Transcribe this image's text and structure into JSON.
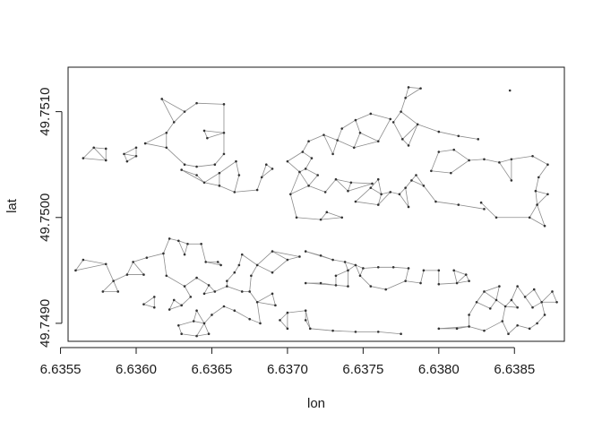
{
  "chart_data": {
    "type": "scatter",
    "title": "",
    "xlabel": "lon",
    "ylabel": "lat",
    "xlim": [
      6.63555,
      6.63883
    ],
    "ylim": [
      49.74883,
      49.75142
    ],
    "x_ticks": [
      "6.6355",
      "6.6360",
      "6.6365",
      "6.6370",
      "6.6375",
      "6.6380",
      "6.6385"
    ],
    "y_ticks": [
      "49.7490",
      "49.7500",
      "49.7510"
    ],
    "grid": false,
    "legend": "none",
    "point_color": "#333333",
    "line_color": "#8c8c8c",
    "series": [
      {
        "values": [
          [
            6.63617,
            49.75112
          ],
          [
            6.6364,
            49.75108
          ],
          [
            6.63658,
            49.75107
          ],
          [
            6.63632,
            49.751
          ],
          [
            6.63625,
            49.7509
          ],
          [
            6.6362,
            49.7508
          ],
          [
            6.63606,
            49.7507
          ],
          [
            6.6362,
            49.75066
          ],
          [
            6.63632,
            49.7505
          ],
          [
            6.6364,
            49.75048
          ],
          [
            6.63652,
            49.7505
          ],
          [
            6.63658,
            49.7506
          ],
          [
            6.63645,
            49.75082
          ],
          [
            6.63658,
            49.7508
          ],
          [
            6.63647,
            49.75075
          ]
        ]
      },
      {
        "values": [
          [
            6.63565,
            49.75056
          ],
          [
            6.6358,
            49.75054
          ],
          [
            6.63572,
            49.75066
          ],
          [
            6.6358,
            49.75065
          ],
          [
            6.63592,
            49.7506
          ],
          [
            6.636,
            49.75058
          ],
          [
            6.636,
            49.75066
          ],
          [
            6.63594,
            49.75053
          ]
        ]
      },
      {
        "values": [
          [
            6.6363,
            49.75045
          ],
          [
            6.6364,
            49.7504
          ],
          [
            6.63645,
            49.75033
          ],
          [
            6.63655,
            49.7503
          ],
          [
            6.63665,
            49.75024
          ],
          [
            6.6368,
            49.75026
          ],
          [
            6.63686,
            49.7505
          ],
          [
            6.63666,
            49.75053
          ],
          [
            6.63655,
            49.75042
          ],
          [
            6.63668,
            49.7504
          ],
          [
            6.63683,
            49.75038
          ],
          [
            6.6369,
            49.75046
          ]
        ]
      },
      {
        "values": [
          [
            6.637,
            49.75053
          ],
          [
            6.63712,
            49.75046
          ],
          [
            6.6372,
            49.7504
          ],
          [
            6.63732,
            49.75036
          ],
          [
            6.63742,
            49.75033
          ],
          [
            6.63714,
            49.7503
          ],
          [
            6.63725,
            49.75024
          ],
          [
            6.6374,
            49.75025
          ],
          [
            6.63756,
            49.75032
          ],
          [
            6.63716,
            49.75056
          ],
          [
            6.6373,
            49.7506
          ],
          [
            6.63744,
            49.75066
          ],
          [
            6.6376,
            49.75072
          ],
          [
            6.63724,
            49.75078
          ],
          [
            6.63736,
            49.75084
          ],
          [
            6.63745,
            49.75092
          ],
          [
            6.63755,
            49.75098
          ],
          [
            6.63768,
            49.75093
          ],
          [
            6.6371,
            49.75062
          ],
          [
            6.63714,
            49.75072
          ],
          [
            6.63733,
            49.75073
          ],
          [
            6.63748,
            49.7508
          ],
          [
            6.63708,
            49.75043
          ],
          [
            6.63702,
            49.75022
          ],
          [
            6.63726,
            49.75005
          ],
          [
            6.63736,
            49.75
          ],
          [
            6.63706,
            49.75
          ],
          [
            6.63722,
            49.74998
          ]
        ]
      },
      {
        "values": [
          [
            6.6378,
            49.75123
          ],
          [
            6.63788,
            49.75122
          ],
          [
            6.63778,
            49.75113
          ],
          [
            6.63775,
            49.751
          ],
          [
            6.6377,
            49.7509
          ],
          [
            6.63776,
            49.75074
          ],
          [
            6.6378,
            49.75068
          ],
          [
            6.63786,
            49.75088
          ],
          [
            6.638,
            49.75081
          ],
          [
            6.63813,
            49.75077
          ],
          [
            6.63826,
            49.75074
          ],
          [
            6.63847,
            49.7512
          ],
          [
            6.6376,
            49.75036
          ],
          [
            6.63755,
            49.75028
          ],
          [
            6.63762,
            49.75022
          ],
          [
            6.63768,
            49.75024
          ],
          [
            6.63774,
            49.75022
          ],
          [
            6.63778,
            49.75028
          ],
          [
            6.63782,
            49.75035
          ],
          [
            6.63785,
            49.7504
          ],
          [
            6.6379,
            49.7503
          ],
          [
            6.63798,
            49.75015
          ],
          [
            6.63813,
            49.75012
          ],
          [
            6.6383,
            49.75008
          ],
          [
            6.63745,
            49.75015
          ],
          [
            6.6376,
            49.75012
          ],
          [
            6.6378,
            49.7501
          ]
        ]
      },
      {
        "values": [
          [
            6.638,
            49.75062
          ],
          [
            6.6381,
            49.75064
          ],
          [
            6.6382,
            49.75054
          ],
          [
            6.6383,
            49.75055
          ],
          [
            6.6384,
            49.75052
          ],
          [
            6.63848,
            49.75055
          ],
          [
            6.63862,
            49.75058
          ],
          [
            6.63872,
            49.7505
          ],
          [
            6.63866,
            49.75038
          ],
          [
            6.63864,
            49.75025
          ],
          [
            6.63848,
            49.75035
          ],
          [
            6.63872,
            49.75022
          ],
          [
            6.63828,
            49.75014
          ],
          [
            6.63838,
            49.75
          ],
          [
            6.6386,
            49.75
          ],
          [
            6.6387,
            49.74992
          ],
          [
            6.63865,
            49.75012
          ],
          [
            6.63795,
            49.75044
          ],
          [
            6.63808,
            49.75042
          ]
        ]
      },
      {
        "values": [
          [
            6.6356,
            49.7495
          ],
          [
            6.63565,
            49.7496
          ],
          [
            6.6358,
            49.74956
          ],
          [
            6.63598,
            49.74958
          ],
          [
            6.63594,
            49.74946
          ],
          [
            6.63585,
            49.7494
          ],
          [
            6.63578,
            49.7493
          ],
          [
            6.63588,
            49.7493
          ],
          [
            6.63605,
            49.74946
          ],
          [
            6.6362,
            49.74945
          ],
          [
            6.6364,
            49.74943
          ],
          [
            6.6366,
            49.7494
          ],
          [
            6.63675,
            49.7493
          ],
          [
            6.6369,
            49.74928
          ],
          [
            6.637,
            49.7496
          ],
          [
            6.63708,
            49.74963
          ],
          [
            6.6369,
            49.74968
          ],
          [
            6.6367,
            49.74965
          ],
          [
            6.63656,
            49.74955
          ],
          [
            6.63646,
            49.74958
          ],
          [
            6.63632,
            49.74965
          ],
          [
            6.63618,
            49.74966
          ],
          [
            6.63607,
            49.74962
          ],
          [
            6.63622,
            49.7498
          ],
          [
            6.63628,
            49.74978
          ],
          [
            6.63634,
            49.74975
          ],
          [
            6.63643,
            49.74975
          ],
          [
            6.63654,
            49.74958
          ],
          [
            6.63668,
            49.74955
          ],
          [
            6.6368,
            49.74955
          ],
          [
            6.63665,
            49.74948
          ],
          [
            6.63676,
            49.74945
          ],
          [
            6.6369,
            49.74948
          ],
          [
            6.6366,
            49.74935
          ],
          [
            6.6367,
            49.7493
          ],
          [
            6.6368,
            49.7492
          ],
          [
            6.63692,
            49.74917
          ],
          [
            6.63665,
            49.74912
          ],
          [
            6.63675,
            49.74904
          ],
          [
            6.63682,
            49.749
          ],
          [
            6.63612,
            49.74925
          ],
          [
            6.63625,
            49.74922
          ],
          [
            6.63636,
            49.74925
          ],
          [
            6.63645,
            49.74928
          ],
          [
            6.63652,
            49.7493
          ],
          [
            6.63612,
            49.74915
          ],
          [
            6.63622,
            49.74913
          ],
          [
            6.6363,
            49.74917
          ],
          [
            6.6364,
            49.74912
          ],
          [
            6.6365,
            49.74908
          ],
          [
            6.63658,
            49.74916
          ],
          [
            6.63628,
            49.74898
          ],
          [
            6.63638,
            49.74902
          ],
          [
            6.63645,
            49.749
          ],
          [
            6.6363,
            49.7489
          ],
          [
            6.6364,
            49.74888
          ],
          [
            6.63648,
            49.7489
          ],
          [
            6.63605,
            49.74918
          ],
          [
            6.63632,
            49.74935
          ],
          [
            6.63648,
            49.74936
          ]
        ]
      },
      {
        "values": [
          [
            6.63695,
            49.74903
          ],
          [
            6.637,
            49.74895
          ],
          [
            6.63715,
            49.74895
          ],
          [
            6.6373,
            49.74893
          ],
          [
            6.63745,
            49.74892
          ],
          [
            6.6376,
            49.74892
          ],
          [
            6.63775,
            49.7489
          ],
          [
            6.63712,
            49.74903
          ],
          [
            6.637,
            49.7491
          ],
          [
            6.63712,
            49.74912
          ]
        ]
      },
      {
        "values": [
          [
            6.63712,
            49.74968
          ],
          [
            6.63722,
            49.74964
          ],
          [
            6.6373,
            49.7496
          ],
          [
            6.63738,
            49.74958
          ],
          [
            6.63745,
            49.74955
          ],
          [
            6.6375,
            49.74952
          ],
          [
            6.6376,
            49.74953
          ],
          [
            6.6377,
            49.74953
          ],
          [
            6.6378,
            49.74952
          ],
          [
            6.6379,
            49.7495
          ],
          [
            6.638,
            49.7495
          ],
          [
            6.6381,
            49.7495
          ],
          [
            6.63818,
            49.74946
          ],
          [
            6.6382,
            49.7494
          ],
          [
            6.63732,
            49.74945
          ],
          [
            6.6374,
            49.7495
          ],
          [
            6.63748,
            49.74945
          ],
          [
            6.63712,
            49.74938
          ],
          [
            6.63722,
            49.74938
          ],
          [
            6.63732,
            49.74936
          ],
          [
            6.6374,
            49.74935
          ],
          [
            6.63755,
            49.74935
          ],
          [
            6.63765,
            49.74932
          ],
          [
            6.63778,
            49.7494
          ],
          [
            6.63788,
            49.74938
          ],
          [
            6.638,
            49.74937
          ],
          [
            6.63812,
            49.74938
          ]
        ]
      },
      {
        "values": [
          [
            6.638,
            49.74895
          ],
          [
            6.63812,
            49.74895
          ],
          [
            6.6382,
            49.74897
          ],
          [
            6.6383,
            49.74893
          ],
          [
            6.63842,
            49.74902
          ],
          [
            6.63846,
            49.7489
          ],
          [
            6.63852,
            49.74898
          ],
          [
            6.6386,
            49.74895
          ],
          [
            6.63865,
            49.749
          ],
          [
            6.6387,
            49.74908
          ],
          [
            6.63878,
            49.7492
          ],
          [
            6.63875,
            49.7493
          ],
          [
            6.63863,
            49.74932
          ],
          [
            6.63852,
            49.74935
          ],
          [
            6.6384,
            49.74935
          ],
          [
            6.6383,
            49.7493
          ],
          [
            6.63825,
            49.7492
          ],
          [
            6.63834,
            49.74914
          ],
          [
            6.63844,
            49.74916
          ],
          [
            6.63852,
            49.74915
          ],
          [
            6.63862,
            49.74915
          ],
          [
            6.63868,
            49.7492
          ],
          [
            6.6382,
            49.74908
          ],
          [
            6.63838,
            49.74922
          ],
          [
            6.63848,
            49.74922
          ],
          [
            6.63857,
            49.74925
          ]
        ]
      }
    ]
  }
}
